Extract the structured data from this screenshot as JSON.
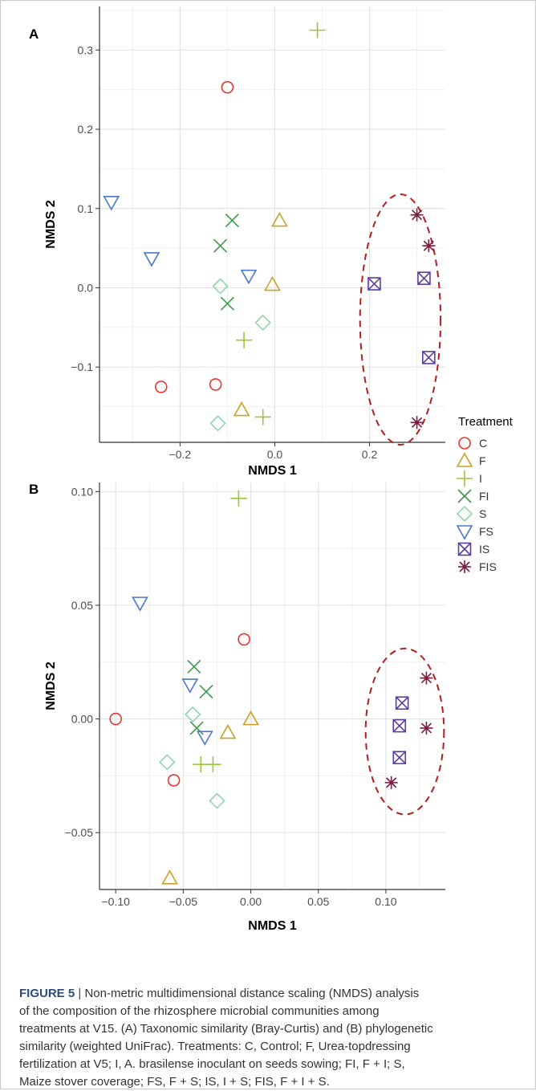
{
  "panels": [
    "A",
    "B"
  ],
  "legend": {
    "title": "Treatment",
    "items": [
      {
        "label": "C",
        "shape": "circle",
        "color": "#e8362e"
      },
      {
        "label": "F",
        "shape": "triangle-up",
        "color": "#c9a227"
      },
      {
        "label": "I",
        "shape": "plus",
        "color": "#9bc63a"
      },
      {
        "label": "FI",
        "shape": "cross",
        "color": "#3a9a4a"
      },
      {
        "label": "S",
        "shape": "diamond",
        "color": "#8fd6a8"
      },
      {
        "label": "FS",
        "shape": "triangle-down",
        "color": "#4a78c8"
      },
      {
        "label": "IS",
        "shape": "boxed-cross",
        "color": "#5b3e9b"
      },
      {
        "label": "FIS",
        "shape": "asterisk",
        "color": "#7a1a3e"
      }
    ]
  },
  "caption": {
    "lead": "FIGURE 5",
    "separator": "|",
    "lines": [
      "Non-metric multidimensional distance scaling (NMDS) analysis",
      "of the composition of the rhizosphere microbial communities among",
      "treatments at V15. (A) Taxonomic similarity (Bray-Curtis) and (B) phylogenetic",
      "similarity (weighted UniFrac). Treatments: C, Control; F, Urea-topdressing",
      "fertilization at V5; I, A. brasilense inoculant on seeds sowing; FI, F + I; S,",
      "Maize stover coverage; FS, F + S; IS, I + S; FIS, F + I + S."
    ]
  },
  "chart_data": [
    {
      "panel": "A",
      "type": "scatter",
      "xlabel": "NMDS 1",
      "ylabel": "NMDS 2",
      "xlim": [
        -0.37,
        0.36
      ],
      "ylim": [
        -0.195,
        0.355
      ],
      "xticks": [
        -0.2,
        0.0,
        0.2
      ],
      "xtick_labels": [
        "−0.2",
        "0.0",
        "0.2"
      ],
      "yticks": [
        -0.1,
        0.0,
        0.1,
        0.2,
        0.3
      ],
      "ytick_labels": [
        "−0.1",
        "0.0",
        "0.1",
        "0.2",
        "0.3"
      ],
      "grid": true,
      "highlight_ellipse": {
        "cx": 0.265,
        "cy": -0.04,
        "rx": 0.085,
        "ry": 0.158,
        "color": "#b01e1e"
      },
      "series": [
        {
          "name": "C",
          "points": [
            [
              -0.1,
              0.253
            ],
            [
              -0.24,
              -0.125
            ],
            [
              -0.125,
              -0.122
            ]
          ]
        },
        {
          "name": "F",
          "points": [
            [
              0.01,
              0.085
            ],
            [
              -0.005,
              0.004
            ],
            [
              -0.07,
              -0.154
            ]
          ]
        },
        {
          "name": "I",
          "points": [
            [
              0.09,
              0.325
            ],
            [
              -0.065,
              -0.066
            ],
            [
              -0.025,
              -0.163
            ]
          ]
        },
        {
          "name": "FI",
          "points": [
            [
              -0.09,
              0.085
            ],
            [
              -0.115,
              0.053
            ],
            [
              -0.1,
              -0.02
            ]
          ]
        },
        {
          "name": "S",
          "points": [
            [
              -0.115,
              0.002
            ],
            [
              -0.025,
              -0.044
            ],
            [
              -0.12,
              -0.171
            ]
          ]
        },
        {
          "name": "FS",
          "points": [
            [
              -0.345,
              0.108
            ],
            [
              -0.26,
              0.037
            ],
            [
              -0.055,
              0.015
            ]
          ]
        },
        {
          "name": "IS",
          "points": [
            [
              0.21,
              0.005
            ],
            [
              0.315,
              0.012
            ],
            [
              0.325,
              -0.088
            ]
          ]
        },
        {
          "name": "FIS",
          "points": [
            [
              0.3,
              0.092
            ],
            [
              0.325,
              0.053
            ],
            [
              0.3,
              -0.17
            ]
          ]
        }
      ]
    },
    {
      "panel": "B",
      "type": "scatter",
      "xlabel": "NMDS 1",
      "ylabel": "NMDS 2",
      "xlim": [
        -0.112,
        0.144
      ],
      "ylim": [
        -0.075,
        0.104
      ],
      "xticks": [
        -0.1,
        -0.05,
        0.0,
        0.05,
        0.1
      ],
      "xtick_labels": [
        "−0.10",
        "−0.05",
        "0.00",
        "0.05",
        "0.10"
      ],
      "yticks": [
        -0.05,
        0.0,
        0.05,
        0.1
      ],
      "ytick_labels": [
        "−0.05",
        "0.00",
        "0.05",
        "0.10"
      ],
      "grid": true,
      "highlight_ellipse": {
        "cx": 0.114,
        "cy": -0.0055,
        "rx": 0.029,
        "ry": 0.0365,
        "color": "#b01e1e"
      },
      "series": [
        {
          "name": "C",
          "points": [
            [
              -0.1,
              0.0
            ],
            [
              -0.005,
              0.035
            ],
            [
              -0.057,
              -0.027
            ]
          ]
        },
        {
          "name": "F",
          "points": [
            [
              -0.017,
              -0.006
            ],
            [
              0.0,
              0.0
            ],
            [
              -0.06,
              -0.07
            ]
          ]
        },
        {
          "name": "I",
          "points": [
            [
              -0.009,
              0.097
            ],
            [
              -0.037,
              -0.02
            ],
            [
              -0.028,
              -0.02
            ]
          ]
        },
        {
          "name": "FI",
          "points": [
            [
              -0.042,
              0.023
            ],
            [
              -0.033,
              0.012
            ],
            [
              -0.04,
              -0.004
            ]
          ]
        },
        {
          "name": "S",
          "points": [
            [
              -0.043,
              0.002
            ],
            [
              -0.062,
              -0.019
            ],
            [
              -0.025,
              -0.036
            ]
          ]
        },
        {
          "name": "FS",
          "points": [
            [
              -0.082,
              0.051
            ],
            [
              -0.045,
              0.015
            ],
            [
              -0.034,
              -0.008
            ]
          ]
        },
        {
          "name": "IS",
          "points": [
            [
              0.112,
              0.007
            ],
            [
              0.11,
              -0.003
            ],
            [
              0.11,
              -0.017
            ]
          ]
        },
        {
          "name": "FIS",
          "points": [
            [
              0.13,
              0.018
            ],
            [
              0.13,
              -0.004
            ],
            [
              0.104,
              -0.028
            ]
          ]
        }
      ]
    }
  ]
}
